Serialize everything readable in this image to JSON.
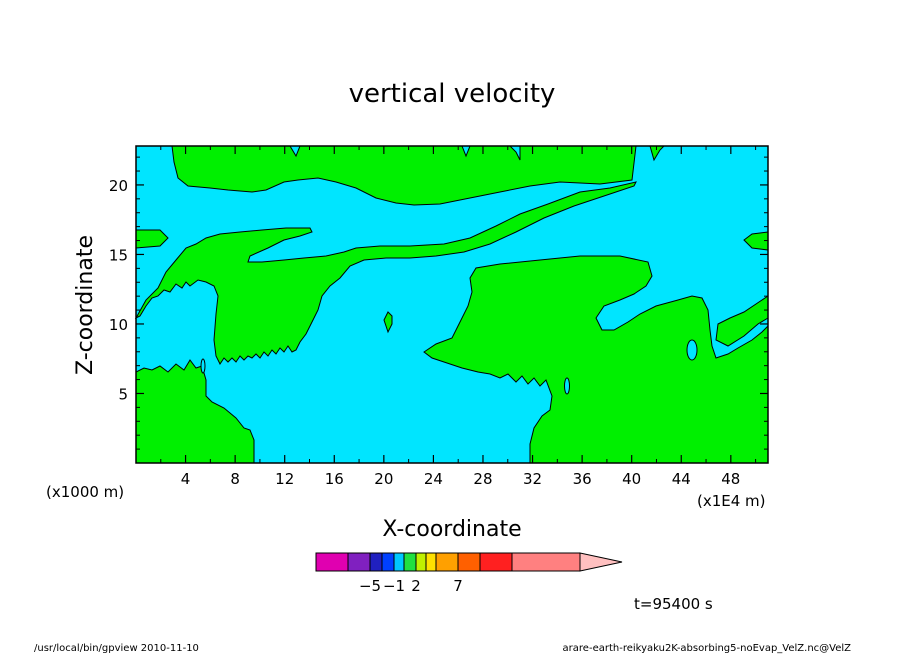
{
  "chart_data": {
    "type": "contour-fill",
    "title": "vertical velocity",
    "xlabel": "X-coordinate",
    "ylabel": "Z-coordinate",
    "x_unit_left": "(x1000 m)",
    "x_unit_right": "(x1E4 m)",
    "xlim": [
      0,
      51
    ],
    "ylim": [
      0,
      22.8
    ],
    "x_ticks": [
      {
        "value": 4,
        "label": "4"
      },
      {
        "value": 8,
        "label": "8"
      },
      {
        "value": 12,
        "label": "12"
      },
      {
        "value": 16,
        "label": "16"
      },
      {
        "value": 20,
        "label": "20"
      },
      {
        "value": 24,
        "label": "24"
      },
      {
        "value": 28,
        "label": "28"
      },
      {
        "value": 32,
        "label": "32"
      },
      {
        "value": 36,
        "label": "36"
      },
      {
        "value": 40,
        "label": "40"
      },
      {
        "value": 44,
        "label": "44"
      },
      {
        "value": 48,
        "label": "48"
      }
    ],
    "y_ticks": [
      {
        "value": 5,
        "label": "5"
      },
      {
        "value": 10,
        "label": "10"
      },
      {
        "value": 15,
        "label": "15"
      },
      {
        "value": 20,
        "label": "20"
      }
    ],
    "colors": {
      "background_field": "#00e5ff",
      "positive_field": "#00f000",
      "contour_line": "#000000"
    },
    "colorbar": {
      "colors": [
        "#e000b0",
        "#8020c0",
        "#2020c0",
        "#0040ff",
        "#00c8ff",
        "#20e040",
        "#c0f000",
        "#ffe000",
        "#ffa000",
        "#ff6000",
        "#ff2020",
        "#ff8080",
        "#ffc0c0"
      ],
      "labels": [
        {
          "after_segment": 1,
          "text": "−5"
        },
        {
          "after_segment": 3,
          "text": "−1"
        },
        {
          "after_segment": 5,
          "text": "2"
        },
        {
          "after_segment": 8,
          "text": "7"
        }
      ]
    },
    "time_label": "t=95400 s"
  },
  "footer": {
    "left": "/usr/local/bin/gpview   2010-11-10",
    "right": "arare-earth-reikyaku2K-absorbing5-noEvap_VelZ.nc@VelZ"
  }
}
